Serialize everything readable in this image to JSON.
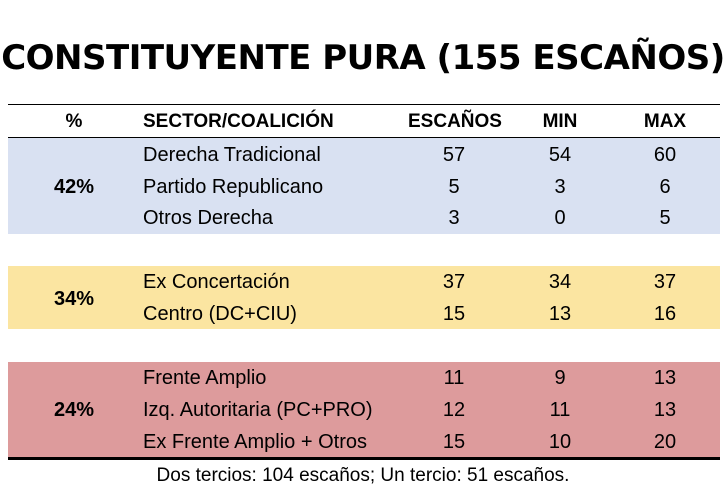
{
  "title": "CONSTITUYENTE PURA (155 ESCAÑOS)",
  "columns": {
    "pct": "%",
    "sector": "SECTOR/COALICIÓN",
    "seats": "ESCAÑOS",
    "min": "MIN",
    "max": "MAX"
  },
  "groups": [
    {
      "pct": "42%",
      "color": "#d9e1f2",
      "rows": [
        {
          "sector": "Derecha Tradicional",
          "seats": "57",
          "min": "54",
          "max": "60"
        },
        {
          "sector": "Partido Republicano",
          "seats": "5",
          "min": "3",
          "max": "6"
        },
        {
          "sector": "Otros Derecha",
          "seats": "3",
          "min": "0",
          "max": "5"
        }
      ]
    },
    {
      "pct": "34%",
      "color": "#fbe5a1",
      "rows": [
        {
          "sector": "Ex Concertación",
          "seats": "37",
          "min": "34",
          "max": "37"
        },
        {
          "sector": "Centro (DC+CIU)",
          "seats": "15",
          "min": "13",
          "max": "16"
        }
      ]
    },
    {
      "pct": "24%",
      "color": "#dd9b9c",
      "rows": [
        {
          "sector": "Frente Amplio",
          "seats": "11",
          "min": "9",
          "max": "13"
        },
        {
          "sector": "Izq. Autoritaria (PC+PRO)",
          "seats": "12",
          "min": "11",
          "max": "13"
        },
        {
          "sector": "Ex Frente Amplio + Otros",
          "seats": "15",
          "min": "10",
          "max": "20"
        }
      ]
    }
  ],
  "footnote": "Dos tercios: 104 escaños; Un tercio: 51 escaños."
}
